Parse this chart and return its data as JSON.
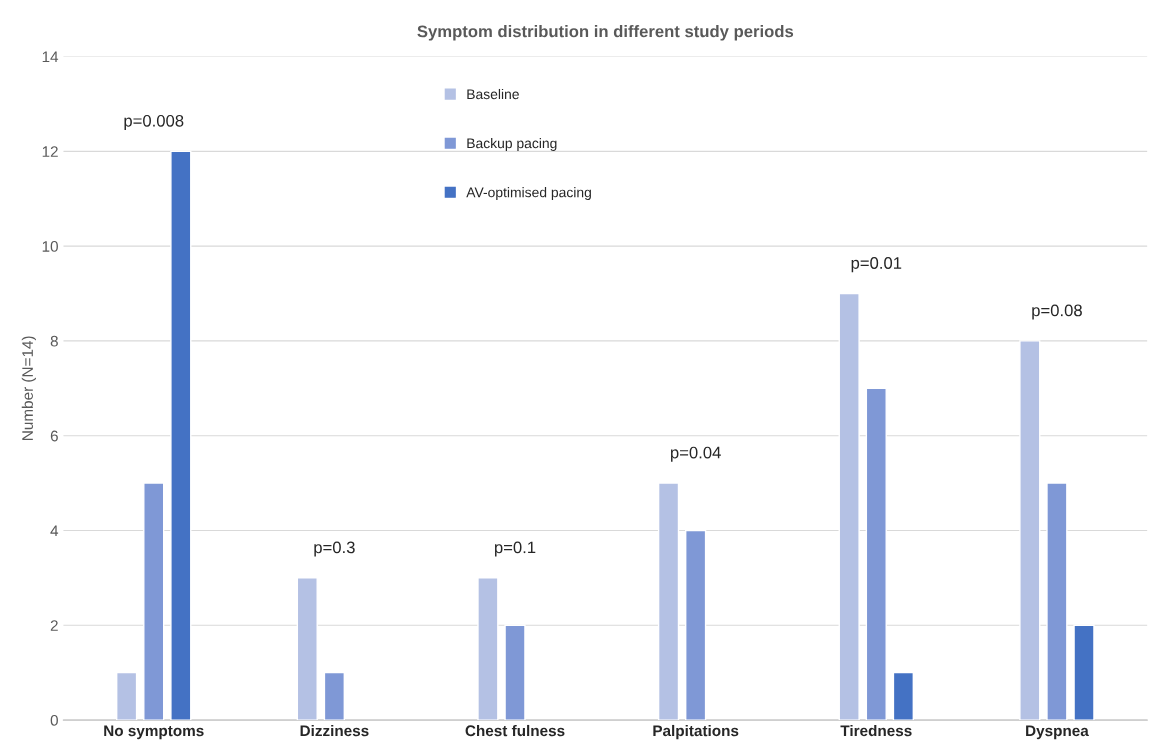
{
  "chart_data": {
    "type": "bar",
    "title": "Symptom distribution in different study periods",
    "ylabel": "Number (N=14)",
    "categories": [
      "No symptoms",
      "Dizziness",
      "Chest fulness",
      "Palpitations",
      "Tiredness",
      "Dyspnea"
    ],
    "series": [
      {
        "name": "Baseline",
        "color": "#b4c1e4",
        "values": [
          1,
          3,
          3,
          5,
          9,
          8
        ]
      },
      {
        "name": "Backup pacing",
        "color": "#7f98d6",
        "values": [
          5,
          1,
          2,
          4,
          7,
          5
        ]
      },
      {
        "name": "AV-optimised pacing",
        "color": "#4472c4",
        "values": [
          12,
          0,
          0,
          0,
          1,
          2
        ]
      }
    ],
    "ylim": [
      0,
      14
    ],
    "yticks": [
      0,
      2,
      4,
      6,
      8,
      10,
      12,
      14
    ],
    "grid": "y",
    "legend": "top",
    "annotations": [
      "p=0.008",
      "p=0.3",
      "p=0.1",
      "p=0.04",
      "p=0.01",
      "p=0.08"
    ]
  }
}
